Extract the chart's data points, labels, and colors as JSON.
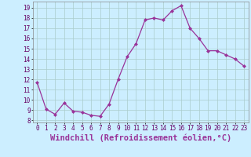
{
  "x": [
    0,
    1,
    2,
    3,
    4,
    5,
    6,
    7,
    8,
    9,
    10,
    11,
    12,
    13,
    14,
    15,
    16,
    17,
    18,
    19,
    20,
    21,
    22,
    23
  ],
  "y": [
    11.7,
    9.1,
    8.6,
    9.7,
    8.9,
    8.8,
    8.5,
    8.4,
    9.6,
    12.0,
    14.2,
    15.5,
    17.8,
    18.0,
    17.8,
    18.7,
    19.2,
    17.0,
    16.0,
    14.8,
    14.8,
    14.4,
    14.0,
    13.3
  ],
  "line_color": "#993399",
  "marker": "D",
  "markersize": 2.0,
  "linewidth": 0.9,
  "bg_color": "#cceeff",
  "grid_color": "#aacccc",
  "xlabel": "Windchill (Refroidissement éolien,°C)",
  "xlabel_fontsize": 7.5,
  "ylabel_ticks": [
    8,
    9,
    10,
    11,
    12,
    13,
    14,
    15,
    16,
    17,
    18,
    19
  ],
  "xlim": [
    -0.5,
    23.5
  ],
  "ylim": [
    7.8,
    19.6
  ],
  "xtick_labels": [
    "0",
    "1",
    "2",
    "3",
    "4",
    "5",
    "6",
    "7",
    "8",
    "9",
    "10",
    "11",
    "12",
    "13",
    "14",
    "15",
    "16",
    "17",
    "18",
    "19",
    "20",
    "21",
    "22",
    "23"
  ],
  "tick_fontsize": 5.5
}
